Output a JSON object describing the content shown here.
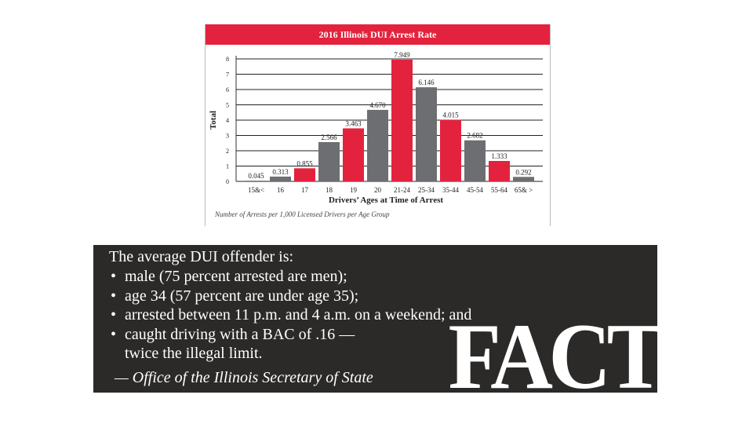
{
  "chart_data": {
    "type": "bar",
    "title": "2016 Illinois DUI Arrest Rate",
    "xlabel": "Drivers’ Ages at Time of Arrest",
    "ylabel": "Total",
    "note": "Number of Arrests per 1,000 Licensed Drivers per Age Group",
    "categories": [
      "15&<",
      "16",
      "17",
      "18",
      "19",
      "20",
      "21-24",
      "25-34",
      "35-44",
      "45-54",
      "55-64",
      "65& >"
    ],
    "values": [
      0.045,
      0.313,
      0.855,
      2.566,
      3.463,
      4.67,
      7.949,
      6.146,
      4.015,
      2.682,
      1.333,
      0.292
    ],
    "value_labels": [
      "0.045",
      "0.313",
      "0.855",
      "2.566",
      "3.463",
      "4.670",
      "7.949",
      "6.146",
      "4.015",
      "2.682",
      "1.333",
      "0.292"
    ],
    "bar_colors": [
      "#6d6e71",
      "#6d6e71",
      "#e3233d",
      "#6d6e71",
      "#e3233d",
      "#6d6e71",
      "#e3233d",
      "#6d6e71",
      "#e3233d",
      "#6d6e71",
      "#e3233d",
      "#6d6e71"
    ],
    "ylim": [
      0,
      8
    ],
    "yticks": [
      "0",
      "1",
      "2",
      "3",
      "4",
      "5",
      "6",
      "7",
      "8"
    ],
    "grid": true
  },
  "fact": {
    "intro": "The average DUI offender is:",
    "items": [
      [
        "male (75 percent arrested are men);"
      ],
      [
        "age 34 (57 percent are under age 35);"
      ],
      [
        "arrested between 11 p.m. and 4 a.m. on a weekend; and"
      ],
      [
        "caught driving with a BAC of .16 —",
        "twice the illegal limit."
      ]
    ],
    "bullet": "•",
    "source": "— Office of the Illinois Secretary of State",
    "stamp": "FACT",
    "background": "#2b2a29"
  },
  "colors": {
    "red": "#e3233d",
    "gray": "#6d6e71"
  }
}
